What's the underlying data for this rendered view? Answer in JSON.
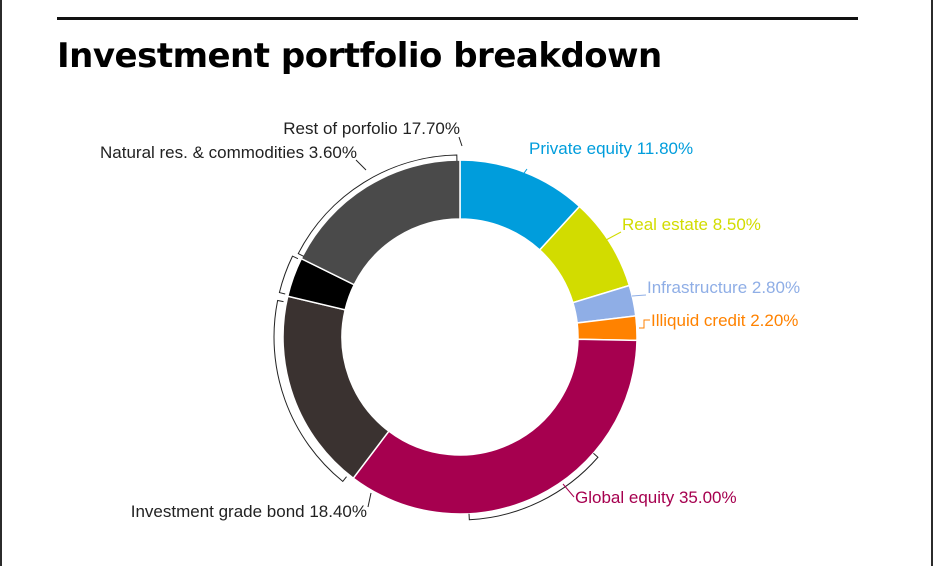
{
  "title": "Investment portfolio breakdown",
  "chart_data": {
    "type": "pie",
    "title": "Investment portfolio breakdown",
    "series": [
      {
        "name": "Private equity",
        "label": "Private equity 11.80%",
        "value": 11.8,
        "color": "#009ddc"
      },
      {
        "name": "Real estate",
        "label": "Real estate 8.50%",
        "value": 8.5,
        "color": "#d2dc00"
      },
      {
        "name": "Infrastructure",
        "label": "Infrastructure 2.80%",
        "value": 2.8,
        "color": "#8faee6"
      },
      {
        "name": "Illiquid credit",
        "label": "Illiquid credit 2.20%",
        "value": 2.2,
        "color": "#ff8200"
      },
      {
        "name": "Global equity",
        "label": "Global equity 35.00%",
        "value": 35.0,
        "color": "#a6004f"
      },
      {
        "name": "Investment grade bond",
        "label": "Investment grade bond 18.40%",
        "value": 18.4,
        "color": "#3a3230"
      },
      {
        "name": "Natural res. & commodities",
        "label": "Natural res. & commodities 3.60%",
        "value": 3.6,
        "color": "#000000"
      },
      {
        "name": "Rest of porfolio",
        "label": "Rest of porfolio 17.70%",
        "value": 17.7,
        "color": "#4a4a4a"
      }
    ],
    "legend": "none"
  }
}
